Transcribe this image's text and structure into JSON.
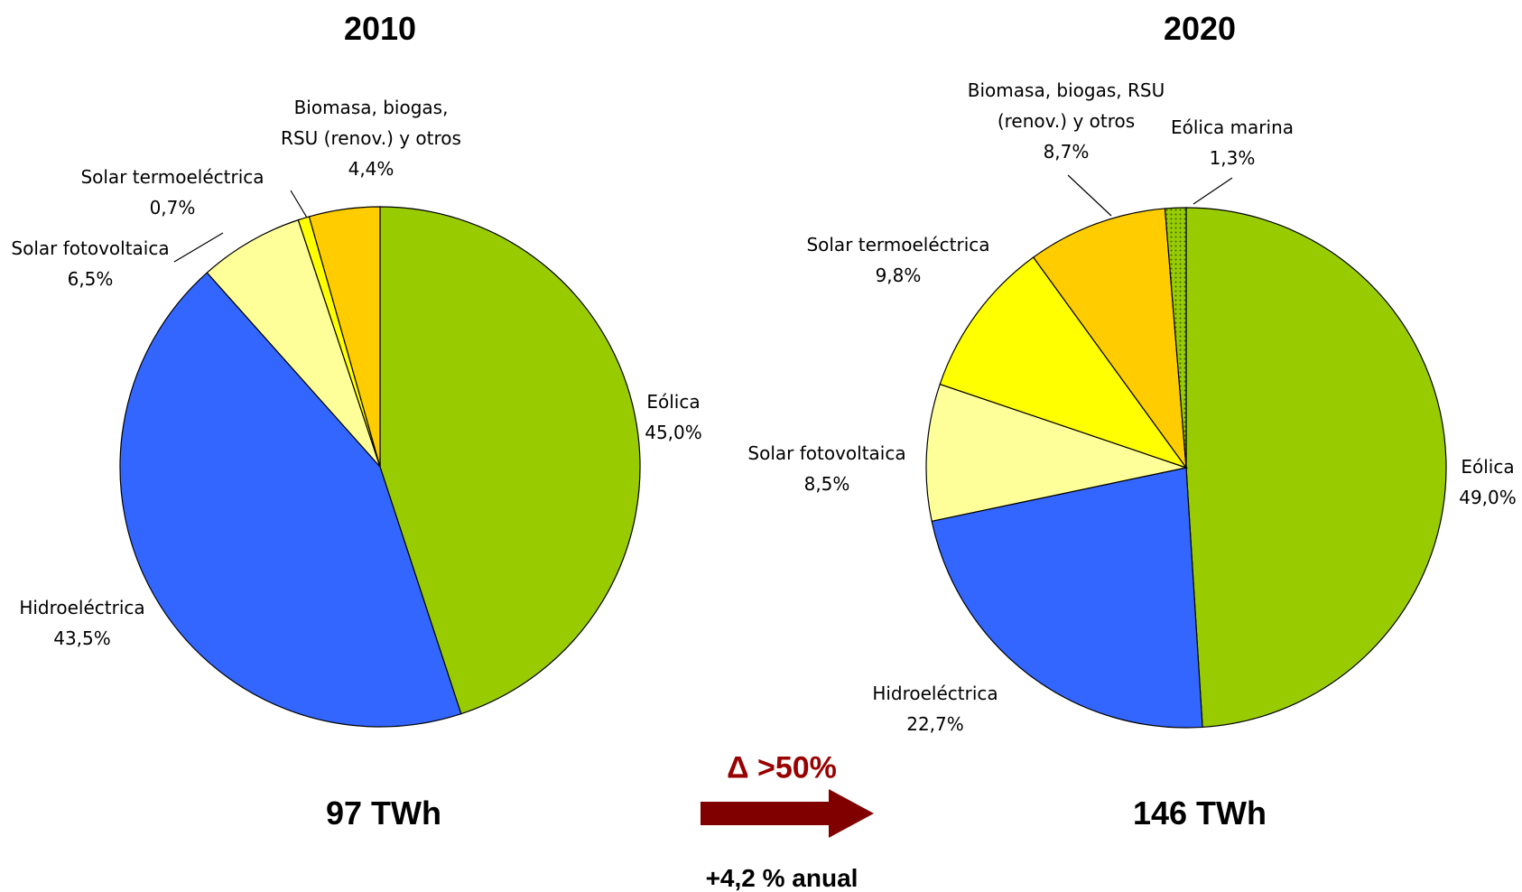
{
  "chart_data": [
    {
      "type": "pie",
      "title": "2010",
      "total": "97 TWh",
      "categories": [
        "Eólica",
        "Hidroeléctrica",
        "Solar fotovoltaica",
        "Solar termoeléctrica",
        "Biomasa, biogas,\nRSU (renov.) y otros"
      ],
      "values": [
        45.0,
        43.5,
        6.5,
        0.7,
        4.4
      ],
      "value_labels": [
        "45,0%",
        "43,5%",
        "6,5%",
        "0,7%",
        "4,4%"
      ],
      "colors": [
        "#99cc00",
        "#3366ff",
        "#ffff99",
        "#ffff00",
        "#ffcc00"
      ]
    },
    {
      "type": "pie",
      "title": "2020",
      "total": "146 TWh",
      "categories": [
        "Eólica",
        "Hidroeléctrica",
        "Solar fotovoltaica",
        "Solar termoeléctrica",
        "Biomasa, biogas, RSU\n(renov.) y otros",
        "Eólica marina"
      ],
      "values": [
        49.0,
        22.7,
        8.5,
        9.8,
        8.7,
        1.3
      ],
      "value_labels": [
        "49,0%",
        "22,7%",
        "8,5%",
        "9,8%",
        "8,7%",
        "1,3%"
      ],
      "colors": [
        "#99cc00",
        "#3366ff",
        "#ffff99",
        "#ffff00",
        "#ffcc00",
        "dotted-green"
      ]
    }
  ],
  "annotations": {
    "growth": "Δ >50%",
    "annual": "+4,2 % anual"
  }
}
